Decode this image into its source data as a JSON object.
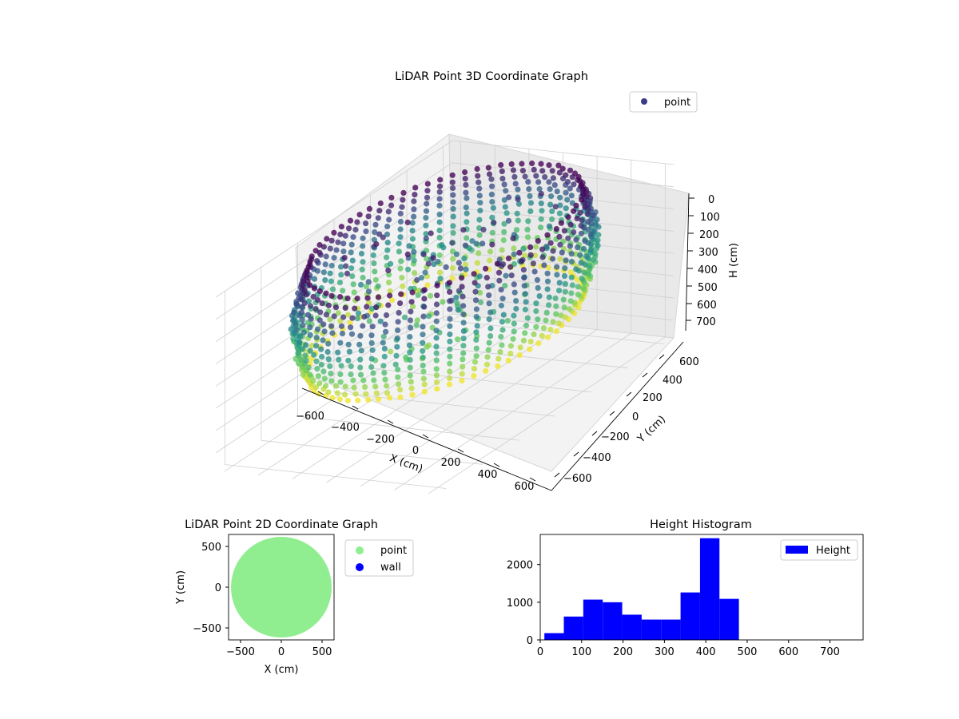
{
  "chart_data": [
    {
      "type": "scatter",
      "dimensions": 3,
      "title": "LiDAR Point 3D Coordinate Graph",
      "xlabel": "X (cm)",
      "ylabel": "Y (cm)",
      "zlabel": "H (cm)",
      "xlim": [
        -650,
        650
      ],
      "ylim": [
        -650,
        650
      ],
      "zlim": [
        0,
        780
      ],
      "z_inverted": true,
      "xticks": [
        "−600",
        "−400",
        "−200",
        "0",
        "200",
        "400",
        "600"
      ],
      "yticks": [
        "−600",
        "−400",
        "−200",
        "0",
        "200",
        "400",
        "600"
      ],
      "zticks": [
        "0",
        "100",
        "200",
        "300",
        "400",
        "500",
        "600",
        "700"
      ],
      "colormap": "viridis",
      "grid": true,
      "legend": {
        "position": "top-right",
        "entries": [
          {
            "name": "point",
            "color": "#3b3a84"
          }
        ]
      },
      "series": [
        {
          "name": "point",
          "shape": "ring",
          "radius_range": [
            500,
            620
          ],
          "height_range": [
            0,
            460
          ]
        }
      ]
    },
    {
      "type": "scatter",
      "dimensions": 2,
      "title": "LiDAR Point 2D Coordinate Graph",
      "xlabel": "X (cm)",
      "ylabel": "Y (cm)",
      "xlim": [
        -650,
        650
      ],
      "ylim": [
        -650,
        650
      ],
      "xticks": [
        "−500",
        "0",
        "500"
      ],
      "yticks": [
        "−500",
        "0",
        "500"
      ],
      "legend": {
        "position": "outside-right",
        "entries": [
          {
            "name": "point",
            "color": "#90ee90"
          },
          {
            "name": "wall",
            "color": "#0000ff"
          }
        ]
      },
      "series": [
        {
          "name": "point",
          "color": "#90ee90",
          "shape": "filled-disc",
          "radius": 620
        },
        {
          "name": "wall",
          "color": "#0000ff",
          "shape": "none"
        }
      ]
    },
    {
      "type": "bar",
      "subtype": "histogram",
      "title": "Height Histogram",
      "xlim": [
        0,
        780
      ],
      "ylim": [
        0,
        2800
      ],
      "xticks": [
        "0",
        "100",
        "200",
        "300",
        "400",
        "500",
        "600",
        "700"
      ],
      "yticks": [
        "0",
        "1000",
        "2000"
      ],
      "legend": {
        "position": "top-right",
        "entries": [
          {
            "name": "Height",
            "color": "#0000ff"
          }
        ]
      },
      "series": [
        {
          "name": "Height",
          "color": "#0000ff",
          "bin_edges": [
            10,
            57,
            104,
            151,
            198,
            245,
            292,
            339,
            386,
            433,
            480,
            527,
            574,
            621,
            668,
            715,
            762
          ],
          "values": [
            180,
            620,
            1070,
            1000,
            670,
            540,
            540,
            1260,
            2700,
            1090,
            0,
            0,
            0,
            0,
            0,
            0
          ]
        }
      ]
    }
  ]
}
